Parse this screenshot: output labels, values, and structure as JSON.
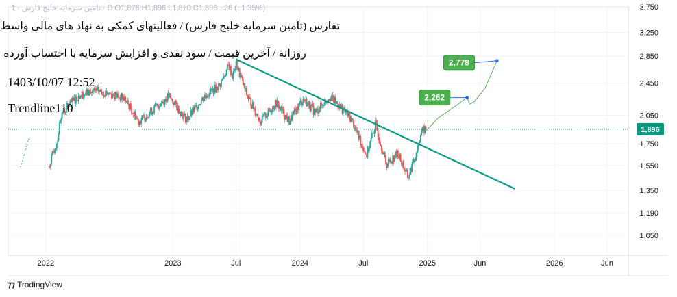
{
  "legend": "تامین سرمایه خلیج فارس · 1 · D  O1,876  H1,896  L1,870  C1,896  −26 (−1.35%)",
  "title_line1": "تفارس (تامین سرمایه خلیج فارس) / فعالیتهای کمکی به نهاد های مالی واسط",
  "title_line2": "روزانه / آخرین قیمت / سود نقدی و افزایش سرمایه با احتساب آورده",
  "timestamp": "1403/10/07 12:52",
  "watermark": "Trendline110",
  "footer_brand": "TradingView",
  "colors": {
    "up": "#26a69a",
    "down": "#ef5350",
    "trendline": "#089981",
    "label_bg": "#4caf50",
    "price_tag": "#089981",
    "projection": "#4caf50",
    "anchor": "#2962ff"
  },
  "chart_data": {
    "type": "candlestick",
    "title": "",
    "y_scale": "log",
    "yticks": [
      1050,
      1190,
      1350,
      1550,
      1750,
      2050,
      2450,
      2850,
      3250,
      3750
    ],
    "ytick_labels": [
      "1,050",
      "1,190",
      "1,350",
      "1,550",
      "1,750",
      "2,050",
      "2,450",
      "2,850",
      "3,250",
      "3,750"
    ],
    "ylim": [
      940,
      3750
    ],
    "xlim": [
      "2021-09-15",
      "2026-08-01"
    ],
    "xticks": [
      {
        "date": "2022-01-01",
        "label": "2022"
      },
      {
        "date": "2023-01-01",
        "label": "2023"
      },
      {
        "date": "2023-07-01",
        "label": "Jul"
      },
      {
        "date": "2024-01-01",
        "label": "2024"
      },
      {
        "date": "2024-07-01",
        "label": "Jul"
      },
      {
        "date": "2025-01-01",
        "label": "2025"
      },
      {
        "date": "2025-06-01",
        "label": "Jun"
      },
      {
        "date": "2026-01-01",
        "label": "2026"
      },
      {
        "date": "2026-06-01",
        "label": "Jun"
      }
    ],
    "last_price": 1896,
    "last_price_label": "1,896",
    "price_path": [
      [
        "2022-01-10",
        1540
      ],
      [
        "2022-01-18",
        1620
      ],
      [
        "2022-01-26",
        1700
      ],
      [
        "2022-02-03",
        1780
      ],
      [
        "2022-02-13",
        2050
      ],
      [
        "2022-03-03",
        2150
      ],
      [
        "2022-04-10",
        2300
      ],
      [
        "2022-06-01",
        2350
      ],
      [
        "2022-07-15",
        2300
      ],
      [
        "2022-08-15",
        2250
      ],
      [
        "2022-09-25",
        1980
      ],
      [
        "2022-11-01",
        2100
      ],
      [
        "2022-12-20",
        2280
      ],
      [
        "2023-02-10",
        2000
      ],
      [
        "2023-04-01",
        2280
      ],
      [
        "2023-05-15",
        2420
      ],
      [
        "2023-06-10",
        2700
      ],
      [
        "2023-06-22",
        2550
      ],
      [
        "2023-07-02",
        2720
      ],
      [
        "2023-08-01",
        2300
      ],
      [
        "2023-09-10",
        1980
      ],
      [
        "2023-10-25",
        2200
      ],
      [
        "2023-12-01",
        1980
      ],
      [
        "2024-01-10",
        2250
      ],
      [
        "2024-02-15",
        2080
      ],
      [
        "2024-03-25",
        2280
      ],
      [
        "2024-04-25",
        2150
      ],
      [
        "2024-05-28",
        2000
      ],
      [
        "2024-07-10",
        1640
      ],
      [
        "2024-08-05",
        1950
      ],
      [
        "2024-09-05",
        1560
      ],
      [
        "2024-10-08",
        1660
      ],
      [
        "2024-11-06",
        1450
      ],
      [
        "2024-11-26",
        1620
      ],
      [
        "2024-12-15",
        1880
      ],
      [
        "2024-12-28",
        1896
      ]
    ],
    "dotted_history": [
      [
        "2021-10-20",
        1540
      ],
      [
        "2021-11-15",
        1810
      ]
    ],
    "trendline": {
      "start": [
        "2023-07-01",
        2800
      ],
      "end": [
        "2025-09-10",
        1360
      ]
    },
    "targets": [
      {
        "label": "2,262",
        "anchor": [
          "2025-04-25",
          2262
        ],
        "projection": [
          [
            "2024-12-28",
            1880
          ],
          [
            "2025-02-01",
            2020
          ],
          [
            "2025-03-20",
            2150
          ],
          [
            "2025-04-25",
            2262
          ],
          [
            "2025-05-02",
            2180
          ],
          [
            "2025-05-15",
            2210
          ],
          [
            "2025-06-15",
            2380
          ],
          [
            "2025-07-20",
            2778
          ]
        ]
      },
      {
        "label": "2,778",
        "anchor": [
          "2025-07-20",
          2778
        ]
      }
    ]
  }
}
